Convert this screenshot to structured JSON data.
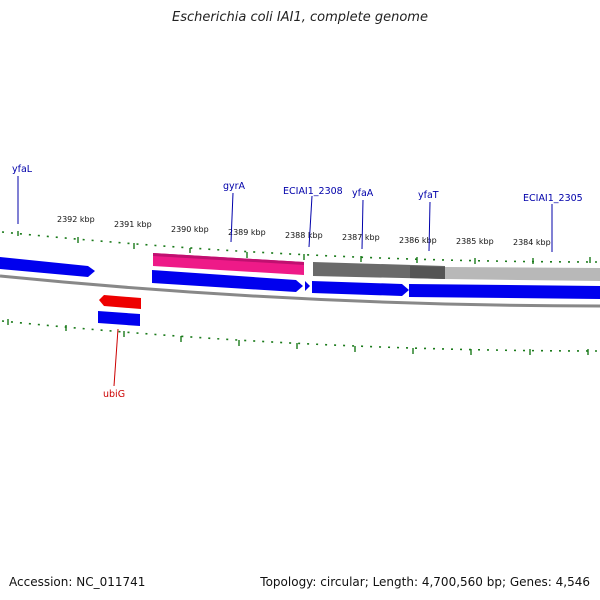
{
  "title": "Escherichia coli IAI1, complete genome",
  "footer": {
    "accession_label": "Accession:",
    "accession": "NC_011741",
    "topology_label": "Topology:",
    "topology": "circular;",
    "length_label": "Length:",
    "length": "4,700,560 bp;",
    "genes_label": "Genes:",
    "genes": "4,546"
  },
  "ticks": [
    "2392 kbp",
    "2391 kbp",
    "2390 kbp",
    "2389 kbp",
    "2388 kbp",
    "2387 kbp",
    "2386 kbp",
    "2385 kbp",
    "2384 kbp"
  ],
  "genes": {
    "yfaL": "yfaL",
    "gyrA": "gyrA",
    "ECIAI1_2308": "ECIAI1_2308",
    "yfaA": "yfaA",
    "yfaT": "yfaT",
    "ECIAI1_2305": "ECIAI1_2305",
    "ubiG": "ubiG"
  },
  "colors": {
    "cds": "#0000ee",
    "rna_pink": "#ee1a88",
    "ubiG_red": "#ee0000",
    "label_blue": "#0000aa",
    "label_red": "#cc0000",
    "tick_green": "#1a7a1a",
    "backbone": "#888888",
    "dark_gray": "#666666",
    "light_gray": "#b0b0b0"
  }
}
